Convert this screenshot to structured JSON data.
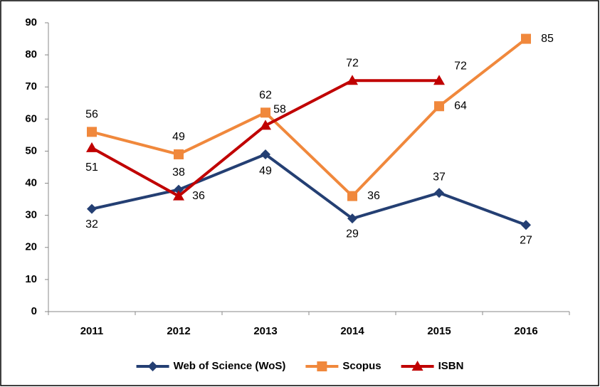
{
  "chart_data": {
    "type": "line",
    "categories": [
      "2011",
      "2012",
      "2013",
      "2014",
      "2015",
      "2016"
    ],
    "series": [
      {
        "name": "Web of Science (WoS)",
        "color": "#243f73",
        "marker": "diamond",
        "values": [
          32,
          38,
          49,
          29,
          37,
          27
        ]
      },
      {
        "name": "Scopus",
        "color": "#f0883c",
        "marker": "square",
        "values": [
          56,
          49,
          62,
          36,
          64,
          85
        ]
      },
      {
        "name": "ISBN",
        "color": "#c00000",
        "marker": "triangle",
        "values": [
          51,
          36,
          58,
          72,
          72,
          null
        ]
      }
    ],
    "ylim": [
      0,
      90
    ],
    "yticks": [
      0,
      10,
      20,
      30,
      40,
      50,
      60,
      70,
      80,
      90
    ],
    "grid": false,
    "legend": "bottom"
  }
}
